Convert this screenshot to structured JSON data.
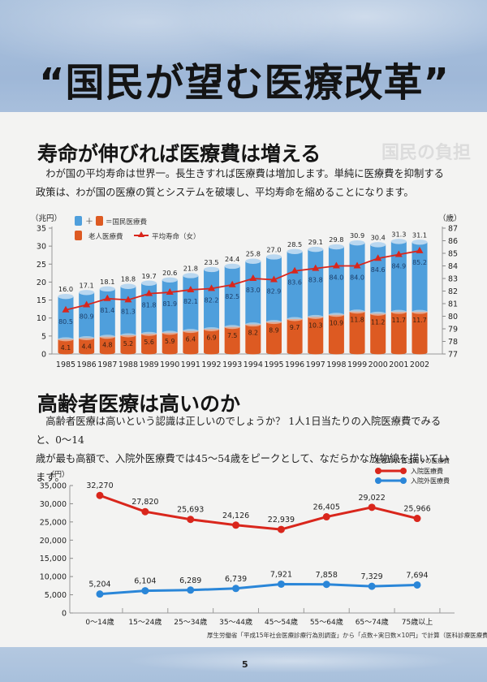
{
  "header": {
    "title": "“国民が望む医療改革”"
  },
  "section1": {
    "heading": "寿命が伸びれば医療費は増える",
    "ghost_text": "国民の負担",
    "paragraph": [
      "わが国の平均寿命は世界一。長生きすれば医療費は増加します。単純に医療費を抑制する",
      "政策は、わが国の医療の質とシステムを破壊し、平均寿命を縮めることになります。"
    ]
  },
  "section2": {
    "heading": "高齢者医療は高いのか",
    "paragraph": [
      "高齢者医療は高いという認識は正しいのでしょうか？ 1人1日当たりの入院医療費でみると、0～14",
      "歳が最も高額で、入院外医療費では45～54歳をピークとして、なだらかな放物線を描いています。"
    ]
  },
  "footer": {
    "source": "厚生労働省「平成15年社会医療診療行為別調査」から「点数÷実日数×10円」で計算（医科診療医療費のみ）",
    "page_number": "5"
  },
  "colors": {
    "blue": "#4f9fdc",
    "blue_top": "#b9d7f0",
    "orange": "#dd5a22",
    "red_line": "#d9261c",
    "blue_line": "#2a86d8"
  },
  "chart_data": [
    {
      "type": "bar",
      "subtype": "stacked-bar-with-line",
      "title": "",
      "categories": [
        "1985",
        "1986",
        "1987",
        "1988",
        "1989",
        "1990",
        "1991",
        "1992",
        "1993",
        "1994",
        "1995",
        "1996",
        "1997",
        "1998",
        "1999",
        "2000",
        "2001",
        "2002"
      ],
      "ylabel": "（兆円）",
      "y2label": "（歳）",
      "ylim": [
        0,
        35
      ],
      "yticks": [
        0,
        5,
        10,
        15,
        20,
        25,
        30,
        35
      ],
      "y2lim": [
        77,
        87
      ],
      "y2ticks": [
        77,
        78,
        79,
        80,
        81,
        82,
        83,
        84,
        85,
        86,
        87
      ],
      "legend": {
        "plus": "＋",
        "total_label": "＝国民医療費",
        "elderly_label": "老人医療費",
        "life_label": "平均寿命（女）"
      },
      "legend_position": "top-left",
      "series": [
        {
          "name": "国民医療費",
          "axis": "left",
          "values": [
            16.0,
            17.1,
            18.1,
            18.8,
            19.7,
            20.6,
            21.8,
            23.5,
            24.4,
            25.8,
            27.0,
            28.5,
            29.1,
            29.8,
            30.9,
            30.4,
            31.3,
            31.1
          ]
        },
        {
          "name": "老人医療費",
          "axis": "left",
          "values": [
            4.1,
            4.4,
            4.8,
            5.2,
            5.6,
            5.9,
            6.4,
            6.9,
            7.5,
            8.2,
            8.9,
            9.7,
            10.3,
            10.9,
            11.8,
            11.2,
            11.7,
            11.7
          ]
        },
        {
          "name": "平均寿命（女）",
          "axis": "right",
          "type": "line",
          "values": [
            80.5,
            80.9,
            81.4,
            81.3,
            81.8,
            81.9,
            82.1,
            82.2,
            82.5,
            83.0,
            82.9,
            83.6,
            83.8,
            84.0,
            84.0,
            84.6,
            84.9,
            85.2
          ]
        }
      ],
      "total_labels": [
        "16.0",
        "17.1",
        "18.1",
        "18.8",
        "19.7",
        "20.6",
        "21.8",
        "23.5",
        "24.4",
        "25.8",
        "27.0",
        "28.5",
        "29.1",
        "29.8",
        "30.9",
        "30.4",
        "31.3",
        "31.1"
      ],
      "elderly_labels": [
        "4.1",
        "4.4",
        "4.8",
        "5.2",
        "5.6",
        "5.9",
        "6.4",
        "6.9",
        "7.5",
        "8.2",
        "8.9",
        "9.7",
        "10.3",
        "10.9",
        "11.8",
        "11.2",
        "11.7",
        "11.7"
      ],
      "life_labels": [
        "80.5",
        "80.9",
        "81.4",
        "81.3",
        "81.8",
        "81.9",
        "82.1",
        "82.2",
        "82.5",
        "83.0",
        "82.9",
        "83.6",
        "83.8",
        "84.0",
        "84.0",
        "84.6",
        "84.9",
        "85.2"
      ]
    },
    {
      "type": "line",
      "title": "",
      "categories": [
        "0～14歳",
        "15～24歳",
        "25～34歳",
        "35～44歳",
        "45～54歳",
        "55～64歳",
        "65～74歳",
        "75歳以上"
      ],
      "ylabel": "（円）",
      "ylim": [
        0,
        35000
      ],
      "yticks": [
        0,
        5000,
        10000,
        15000,
        20000,
        25000,
        30000,
        35000
      ],
      "ytick_labels": [
        "0",
        "5,000",
        "10,000",
        "15,000",
        "20,000",
        "25,000",
        "30,000",
        "35,000"
      ],
      "legend_title": "患者1人1日当たりの医療費",
      "legend_position": "top-right",
      "series": [
        {
          "name": "入院医療費",
          "values": [
            32270,
            27820,
            25693,
            24126,
            22939,
            26405,
            29022,
            25966
          ],
          "labels": [
            "32,270",
            "27,820",
            "25,693",
            "24,126",
            "22,939",
            "26,405",
            "29,022",
            "25,966"
          ]
        },
        {
          "name": "入院外医療費",
          "values": [
            5204,
            6104,
            6289,
            6739,
            7921,
            7858,
            7329,
            7694
          ],
          "labels": [
            "5,204",
            "6,104",
            "6,289",
            "6,739",
            "7,921",
            "7,858",
            "7,329",
            "7,694"
          ]
        }
      ]
    }
  ]
}
